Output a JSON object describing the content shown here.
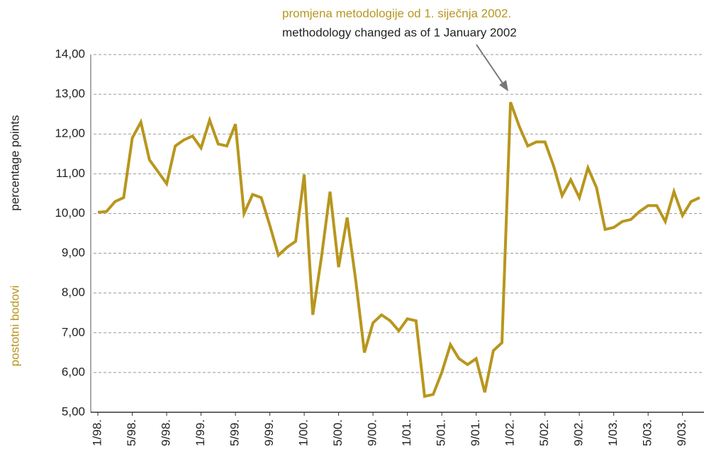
{
  "chart_data": {
    "type": "line",
    "annotation": [
      "promjena metodologije od 1. siječnja 2002.",
      "methodology changed as of 1 January 2002"
    ],
    "ylabel": [
      "percentage points",
      "postotni bodovi"
    ],
    "categories": [
      "1/98.",
      null,
      null,
      null,
      "5/98.",
      null,
      null,
      null,
      "9/98.",
      null,
      null,
      null,
      "1/99.",
      null,
      null,
      null,
      "5/99.",
      null,
      null,
      null,
      "9/99.",
      null,
      null,
      null,
      "1/00.",
      null,
      null,
      null,
      "5/00.",
      null,
      null,
      null,
      "9/00.",
      null,
      null,
      null,
      "1/01.",
      null,
      null,
      null,
      "5/01.",
      null,
      null,
      null,
      "9/01.",
      null,
      null,
      null,
      "1/02.",
      null,
      null,
      null,
      "5/02.",
      null,
      null,
      null,
      "9/02.",
      null,
      null,
      null,
      "1/03.",
      null,
      null,
      null,
      "5/03.",
      null,
      null,
      null,
      "9/03.",
      null,
      null
    ],
    "series": [
      {
        "color": "#b8961e",
        "values": [
          10.03,
          10.05,
          10.3,
          10.4,
          11.9,
          12.3,
          11.35,
          11.05,
          10.75,
          11.7,
          11.85,
          11.95,
          11.65,
          12.35,
          11.75,
          11.7,
          12.25,
          10.0,
          10.48,
          10.4,
          9.7,
          8.95,
          9.15,
          9.3,
          10.98,
          7.45,
          8.9,
          10.55,
          8.65,
          9.9,
          8.3,
          6.5,
          7.25,
          7.45,
          7.3,
          7.05,
          7.35,
          7.3,
          5.4,
          5.45,
          6.0,
          6.7,
          6.35,
          6.2,
          6.35,
          5.5,
          6.55,
          6.75,
          12.8,
          12.2,
          11.7,
          11.8,
          11.8,
          11.2,
          10.45,
          10.85,
          10.4,
          11.15,
          10.65,
          9.6,
          9.65,
          9.8,
          9.85,
          10.05,
          10.2,
          10.2,
          9.8,
          10.55,
          9.95,
          10.3,
          10.4
        ]
      }
    ],
    "ylim": [
      5,
      14
    ],
    "yticks": [
      {
        "value": 5,
        "label": "5,00"
      },
      {
        "value": 6,
        "label": "6,00"
      },
      {
        "value": 7,
        "label": "7,00"
      },
      {
        "value": 8,
        "label": "8,00"
      },
      {
        "value": 9,
        "label": "9,00"
      },
      {
        "value": 10,
        "label": "10,00"
      },
      {
        "value": 11,
        "label": "11,00"
      },
      {
        "value": 12,
        "label": "12,00"
      },
      {
        "value": 13,
        "label": "13,00"
      },
      {
        "value": 14,
        "label": "14,00"
      }
    ],
    "grid": true
  }
}
